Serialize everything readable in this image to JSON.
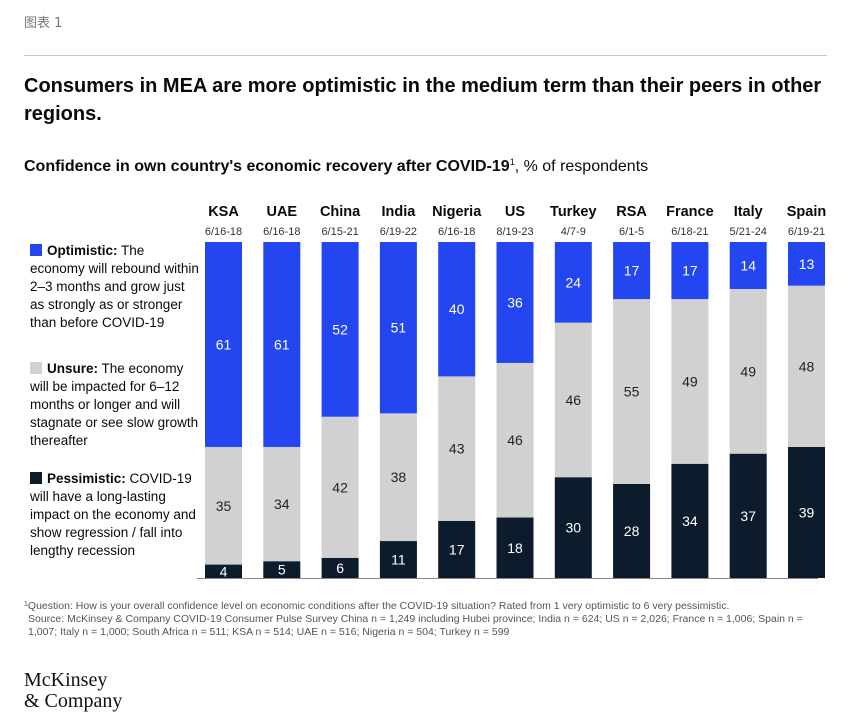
{
  "figure_label": "图表 1",
  "title": "Consumers in MEA are more optimistic in the medium term than their peers in other regions.",
  "subtitle": {
    "bold": "Confidence in own country's economic recovery after COVID-19",
    "sup": "1",
    "rest": ", % of respondents"
  },
  "legend": [
    {
      "label": "Optimistic:",
      "text": " The economy will rebound within 2–3 months and grow just as strongly as or stronger than before COVID-19",
      "color": "#2346f0"
    },
    {
      "label": "Unsure:",
      "text": " The economy will be impacted for 6–12 months or longer and will stagnate or see slow growth thereafter",
      "color": "#d1d1d1"
    },
    {
      "label": "Pessimistic:",
      "text": " COVID-19 will have a long-lasting impact on the economy and show regression / fall into lengthy recession",
      "color": "#0c1c2c"
    }
  ],
  "chart_data": {
    "type": "bar",
    "stacked": true,
    "categories": [
      "KSA",
      "UAE",
      "China",
      "India",
      "Nigeria",
      "US",
      "Turkey",
      "RSA",
      "France",
      "Italy",
      "Spain"
    ],
    "dates": [
      "6/16-18",
      "6/16-18",
      "6/15-21",
      "6/19-22",
      "6/16-18",
      "8/19-23",
      "4/7-9",
      "6/1-5",
      "6/18-21",
      "5/21-24",
      "6/19-21"
    ],
    "series": [
      {
        "name": "Optimistic",
        "color": "#2346f0",
        "label_color": "#ffffff",
        "values": [
          61,
          61,
          52,
          51,
          40,
          36,
          24,
          17,
          17,
          14,
          13
        ]
      },
      {
        "name": "Unsure",
        "color": "#d1d1d1",
        "label_color": "#222222",
        "values": [
          35,
          34,
          42,
          38,
          43,
          46,
          46,
          55,
          49,
          49,
          48
        ]
      },
      {
        "name": "Pessimistic",
        "color": "#0c1c2c",
        "label_color": "#ffffff",
        "values": [
          4,
          5,
          6,
          11,
          17,
          18,
          30,
          28,
          34,
          37,
          39
        ]
      }
    ],
    "baseline_color": "#888888"
  },
  "footnote": {
    "sup": "1",
    "question": "Question: How is your overall confidence level on economic conditions after the COVID-19 situation? Rated from 1 very optimistic to 6 very pessimistic.",
    "source": "Source: McKinsey & Company COVID-19 Consumer Pulse Survey China n = 1,249 including Hubei province; India n = 624; US n = 2,026; France n = 1,006; Spain n = 1,007; Italy n = 1,000; South Africa n = 511; KSA n = 514; UAE n = 516; Nigeria n = 504; Turkey n = 599"
  },
  "logo": {
    "line1": "McKinsey",
    "line2": "& Company"
  }
}
